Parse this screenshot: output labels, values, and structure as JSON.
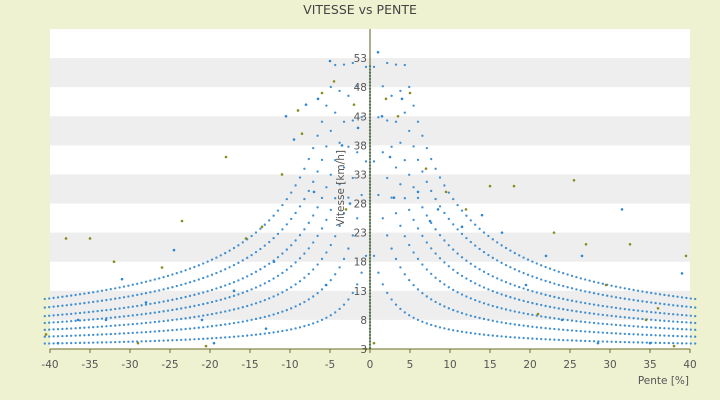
{
  "chart_data": {
    "type": "scatter",
    "title": "VITESSE vs PENTE",
    "xlabel": "Pente [%]",
    "ylabel": "Vitesse [km/h]",
    "xlim": [
      -40,
      40
    ],
    "ylim": [
      3,
      58
    ],
    "x_ticks": [
      "-40",
      "-35",
      "-30",
      "-25",
      "-20",
      "-15",
      "-10",
      "-5",
      "0",
      "5",
      "10",
      "15",
      "20",
      "25",
      "30",
      "35",
      "40"
    ],
    "y_ticks": [
      "3",
      "8",
      "13",
      "18",
      "23",
      "28",
      "33",
      "38",
      "43",
      "48",
      "53"
    ],
    "grid": "horizontal alternating bands",
    "series": [
      {
        "marker": "blue",
        "values": [
          [
            -39.0,
            4.0
          ],
          [
            -36.5,
            8.0
          ],
          [
            -33.0,
            8.0
          ],
          [
            -31.0,
            15.0
          ],
          [
            -28.0,
            11.0
          ],
          [
            -24.5,
            20.0
          ],
          [
            -21.0,
            8.0
          ],
          [
            -19.5,
            4.0
          ],
          [
            -17.0,
            13.0
          ],
          [
            -13.0,
            6.5
          ],
          [
            -12.0,
            18.0
          ],
          [
            -10.5,
            43.0
          ],
          [
            -9.5,
            39.0
          ],
          [
            -8.0,
            45.0
          ],
          [
            -7.0,
            30.0
          ],
          [
            -6.5,
            46.0
          ],
          [
            -5.5,
            14.0
          ],
          [
            -5.0,
            52.5
          ],
          [
            -3.5,
            38.0
          ],
          [
            -2.5,
            28.0
          ],
          [
            -1.5,
            41.0
          ],
          [
            1.0,
            54.0
          ],
          [
            1.5,
            43.0
          ],
          [
            2.5,
            36.0
          ],
          [
            3.0,
            29.0
          ],
          [
            4.0,
            46.0
          ],
          [
            6.0,
            30.0
          ],
          [
            7.5,
            25.0
          ],
          [
            8.5,
            27.0
          ],
          [
            11.5,
            24.0
          ],
          [
            14.0,
            26.0
          ],
          [
            16.5,
            23.0
          ],
          [
            19.5,
            14.0
          ],
          [
            22.0,
            19.0
          ],
          [
            24.0,
            8.0
          ],
          [
            26.5,
            19.0
          ],
          [
            28.5,
            4.0
          ],
          [
            31.5,
            27.0
          ],
          [
            35.0,
            4.0
          ],
          [
            39.0,
            16.0
          ]
        ]
      },
      {
        "marker": "olive",
        "values": [
          [
            -40.5,
            5.5
          ],
          [
            -38.0,
            22.0
          ],
          [
            -35.0,
            22.0
          ],
          [
            -32.0,
            18.0
          ],
          [
            -29.0,
            4.0
          ],
          [
            -26.0,
            17.0
          ],
          [
            -23.5,
            25.0
          ],
          [
            -20.5,
            3.5
          ],
          [
            -18.0,
            36.0
          ],
          [
            -15.5,
            22.0
          ],
          [
            -13.5,
            24.0
          ],
          [
            -11.0,
            33.0
          ],
          [
            -9.0,
            44.0
          ],
          [
            -8.5,
            40.0
          ],
          [
            -6.0,
            47.0
          ],
          [
            -4.5,
            49.0
          ],
          [
            -3.0,
            27.0
          ],
          [
            -2.0,
            45.0
          ],
          [
            -0.5,
            3.0
          ],
          [
            0.5,
            4.0
          ],
          [
            2.0,
            46.0
          ],
          [
            3.5,
            43.0
          ],
          [
            5.0,
            47.0
          ],
          [
            7.0,
            34.0
          ],
          [
            9.5,
            30.0
          ],
          [
            12.0,
            27.0
          ],
          [
            15.0,
            31.0
          ],
          [
            18.0,
            31.0
          ],
          [
            21.0,
            9.0
          ],
          [
            23.0,
            23.0
          ],
          [
            25.5,
            32.0
          ],
          [
            27.0,
            21.0
          ],
          [
            29.5,
            14.0
          ],
          [
            32.5,
            21.0
          ],
          [
            34.5,
            8.0
          ],
          [
            36.0,
            10.0
          ],
          [
            38.0,
            3.5
          ],
          [
            39.5,
            19.0
          ]
        ]
      }
    ]
  }
}
